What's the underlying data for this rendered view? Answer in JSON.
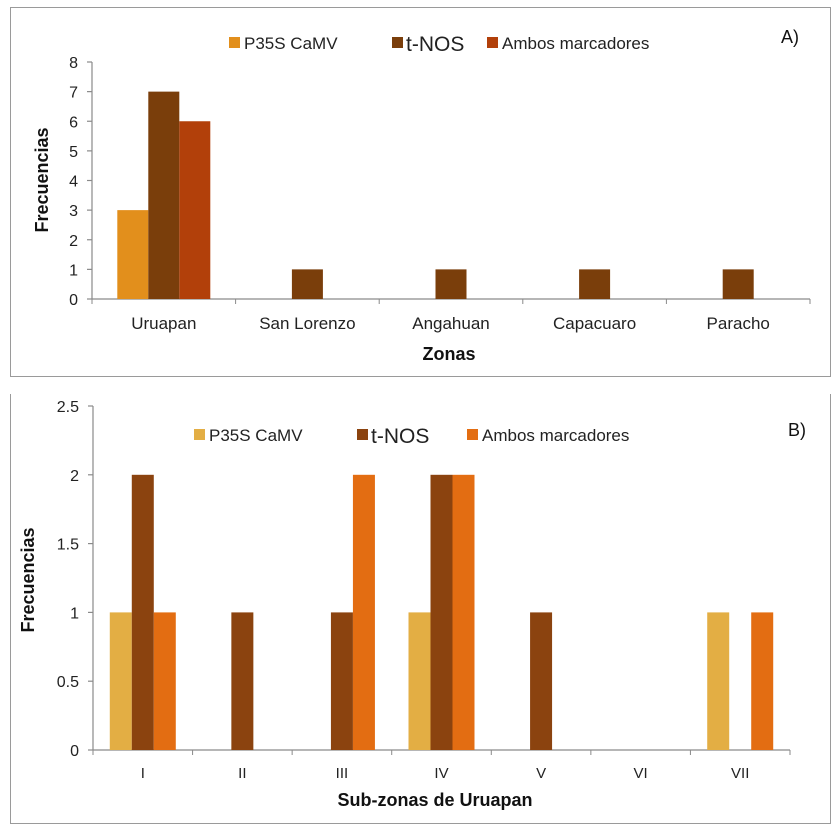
{
  "colors": {
    "A_p35s": "#E28F1C",
    "A_tnos": "#7A3E0B",
    "A_ambos": "#B2400A",
    "B_p35s": "#E3AE44",
    "B_tnos": "#8B430F",
    "B_ambos": "#E36D12",
    "axis": "#8a8a8a"
  },
  "chart_data": [
    {
      "type": "bar",
      "panel_label": "A)",
      "xlabel": "Zonas",
      "ylabel": "Frecuencias",
      "ylim": [
        0,
        8
      ],
      "yticks": [
        "0",
        "1",
        "2",
        "3",
        "4",
        "5",
        "6",
        "7",
        "8"
      ],
      "categories": [
        "Uruapan",
        "San Lorenzo",
        "Angahuan",
        "Capacuaro",
        "Paracho"
      ],
      "series": [
        {
          "name": "P35S CaMV",
          "values": [
            3,
            0,
            0,
            0,
            0
          ]
        },
        {
          "name": "t-NOS",
          "values": [
            7,
            1,
            1,
            1,
            1
          ]
        },
        {
          "name": "Ambos marcadores",
          "values": [
            6,
            0,
            0,
            0,
            0
          ]
        }
      ],
      "legend": "top",
      "grid": false
    },
    {
      "type": "bar",
      "panel_label": "B)",
      "xlabel": "Sub-zonas de Uruapan",
      "ylabel": "Frecuencias",
      "ylim": [
        0,
        2.5
      ],
      "yticks": [
        "0",
        "0.5",
        "1",
        "1.5",
        "2",
        "2.5"
      ],
      "categories": [
        "I",
        "II",
        "III",
        "IV",
        "V",
        "VI",
        "VII"
      ],
      "series": [
        {
          "name": "P35S CaMV",
          "values": [
            1,
            0,
            0,
            1,
            0,
            0,
            1
          ]
        },
        {
          "name": "t-NOS",
          "values": [
            2,
            1,
            1,
            2,
            1,
            0,
            0
          ]
        },
        {
          "name": "Ambos marcadores",
          "values": [
            1,
            0,
            2,
            2,
            0,
            0,
            1
          ]
        }
      ],
      "legend": "top",
      "grid": false
    }
  ]
}
